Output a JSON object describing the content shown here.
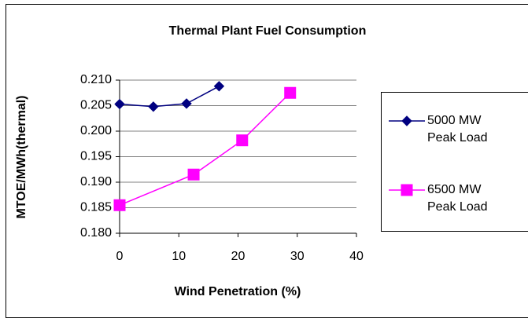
{
  "chart_data": {
    "type": "line",
    "title": "Thermal Plant Fuel Consumption",
    "x_label": "Wind Penetration (%)",
    "y_label": "MTOE/MWh(thermal)",
    "xlim": [
      0,
      40
    ],
    "xticks": [
      0,
      10,
      20,
      30,
      40
    ],
    "ylim": [
      0.18,
      0.21
    ],
    "yticks": [
      {
        "value": 0.18,
        "label": "0.180"
      },
      {
        "value": 0.185,
        "label": "0.185"
      },
      {
        "value": 0.19,
        "label": "0.190"
      },
      {
        "value": 0.195,
        "label": "0.195"
      },
      {
        "value": 0.2,
        "label": "0.200"
      },
      {
        "value": 0.205,
        "label": "0.205"
      },
      {
        "value": 0.21,
        "label": "0.210"
      }
    ],
    "grid": true,
    "legend": "right",
    "series": [
      {
        "name": "5000 MW Peak Load",
        "color": "#000080",
        "marker": "diamond",
        "x": [
          0,
          5.7,
          11.3,
          16.8
        ],
        "values": [
          0.2053,
          0.2048,
          0.2054,
          0.2088
        ]
      },
      {
        "name": "6500 MW Peak Load",
        "color": "#ff00ff",
        "marker": "square",
        "x": [
          0,
          12.5,
          20.7,
          28.8
        ],
        "values": [
          0.1855,
          0.1915,
          0.1982,
          0.2075
        ]
      }
    ]
  }
}
